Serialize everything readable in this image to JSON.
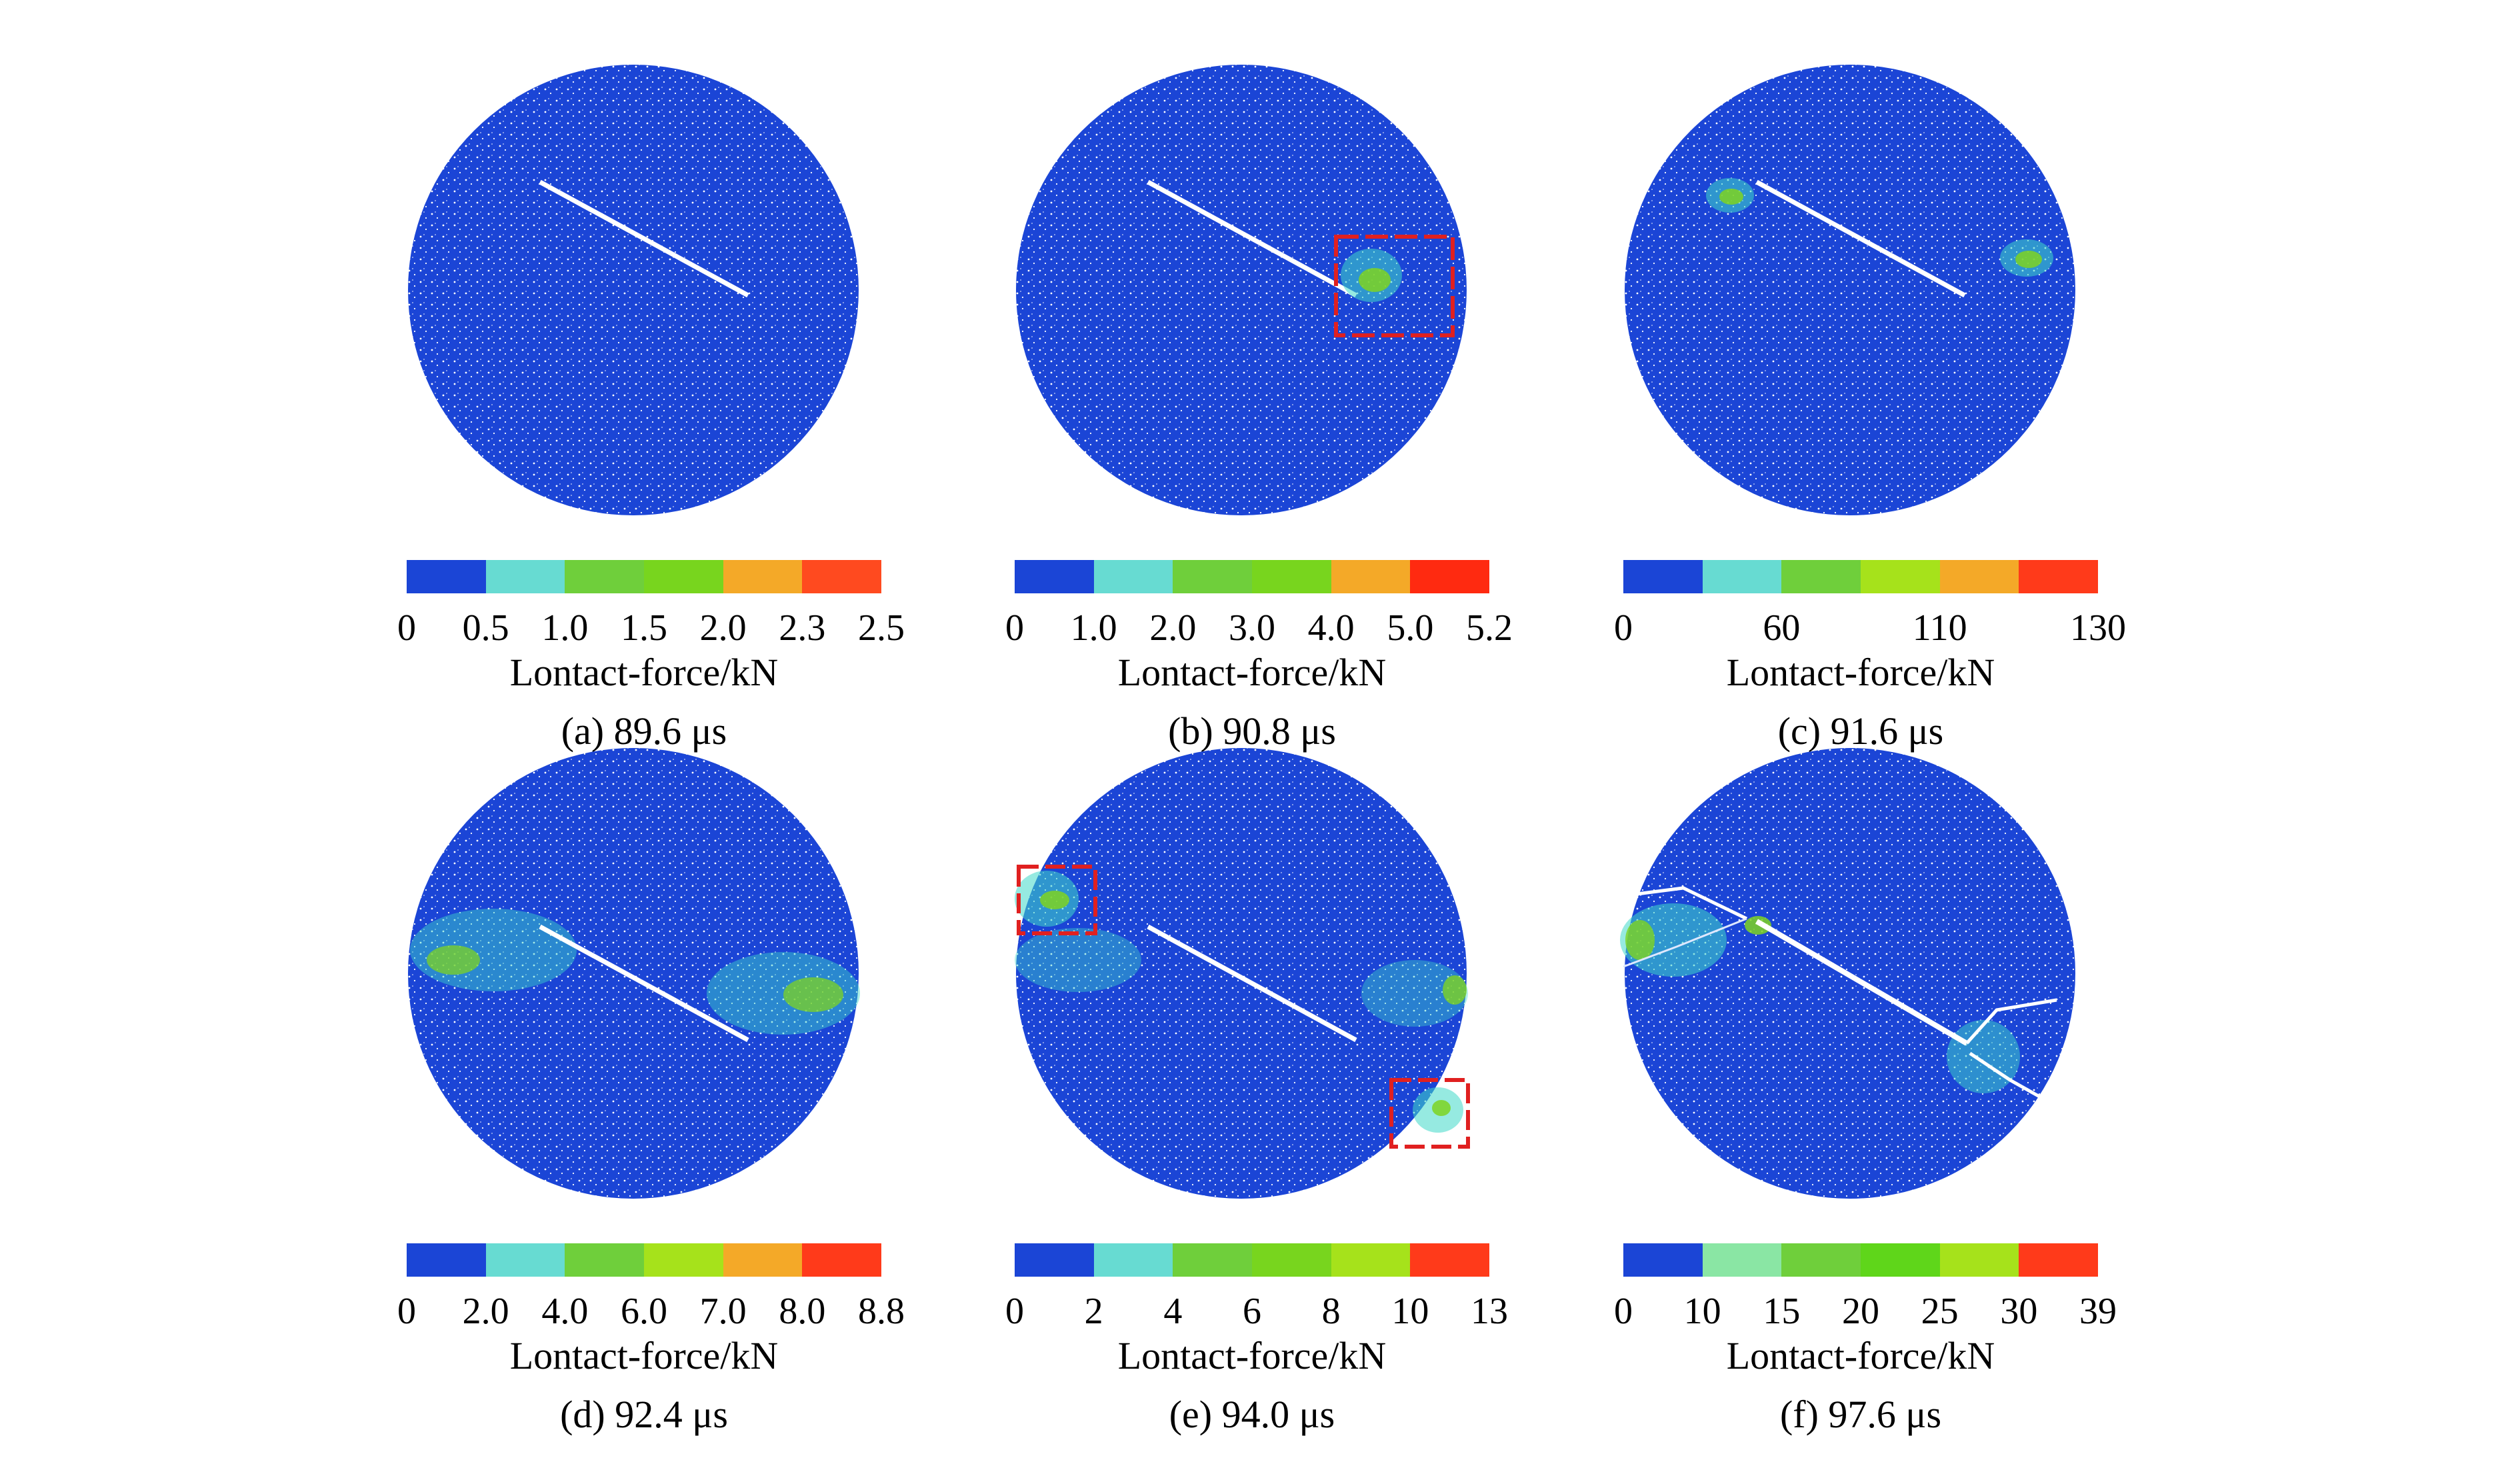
{
  "figure": {
    "colors": {
      "background_blue": "#1b45d6",
      "speckle": "#ffffff",
      "highlight_box": "#e02020",
      "green_cluster": "#7ed321",
      "cyan_cluster": "#3fd9c8"
    },
    "panels": [
      {
        "id": "a",
        "caption": "(a) 89.6 μs",
        "axis_label": "Lontact-force/kN",
        "colorbar": [
          "#1b45d6",
          "#67dbd2",
          "#6fcf3b",
          "#78d51e",
          "#f4a928",
          "#ff4a1f"
        ],
        "ticks": [
          "0",
          "0.5",
          "1.0",
          "1.5",
          "2.0",
          "2.3",
          "2.5"
        ],
        "highlight_boxes": 0
      },
      {
        "id": "b",
        "caption": "(b) 90.8 μs",
        "axis_label": "Lontact-force/kN",
        "colorbar": [
          "#1b45d6",
          "#67dbd2",
          "#6fcf3b",
          "#78d51e",
          "#f4a928",
          "#ff2a10"
        ],
        "ticks": [
          "0",
          "1.0",
          "2.0",
          "3.0",
          "4.0",
          "5.0",
          "5.2"
        ],
        "highlight_boxes": 1
      },
      {
        "id": "c",
        "caption": "(c) 91.6 μs",
        "axis_label": "Lontact-force/kN",
        "colorbar": [
          "#1b45d6",
          "#67dbd2",
          "#6fcf3b",
          "#a6e21b",
          "#f4a928",
          "#ff3a1a"
        ],
        "ticks": [
          "0",
          "60",
          "110",
          "130"
        ],
        "highlight_boxes": 0
      },
      {
        "id": "d",
        "caption": "(d) 92.4 μs",
        "axis_label": "Lontact-force/kN",
        "colorbar": [
          "#1b45d6",
          "#67dbd2",
          "#6fcf3b",
          "#a6e21b",
          "#f4a928",
          "#ff3a1a"
        ],
        "ticks": [
          "0",
          "2.0",
          "4.0",
          "6.0",
          "7.0",
          "8.0",
          "8.8"
        ],
        "highlight_boxes": 0
      },
      {
        "id": "e",
        "caption": "(e) 94.0 μs",
        "axis_label": "Lontact-force/kN",
        "colorbar": [
          "#1b45d6",
          "#67dbd2",
          "#6fcf3b",
          "#78d51e",
          "#a6e21b",
          "#ff3a1a"
        ],
        "ticks": [
          "0",
          "2",
          "4",
          "6",
          "8",
          "10",
          "13"
        ],
        "highlight_boxes": 2
      },
      {
        "id": "f",
        "caption": "(f) 97.6 μs",
        "axis_label": "Lontact-force/kN",
        "colorbar": [
          "#1b45d6",
          "#8ae6a4",
          "#6fcf3b",
          "#5fd61a",
          "#a6e21b",
          "#ff3a1a"
        ],
        "ticks": [
          "0",
          "10",
          "15",
          "20",
          "25",
          "30",
          "39"
        ],
        "highlight_boxes": 0
      }
    ]
  }
}
